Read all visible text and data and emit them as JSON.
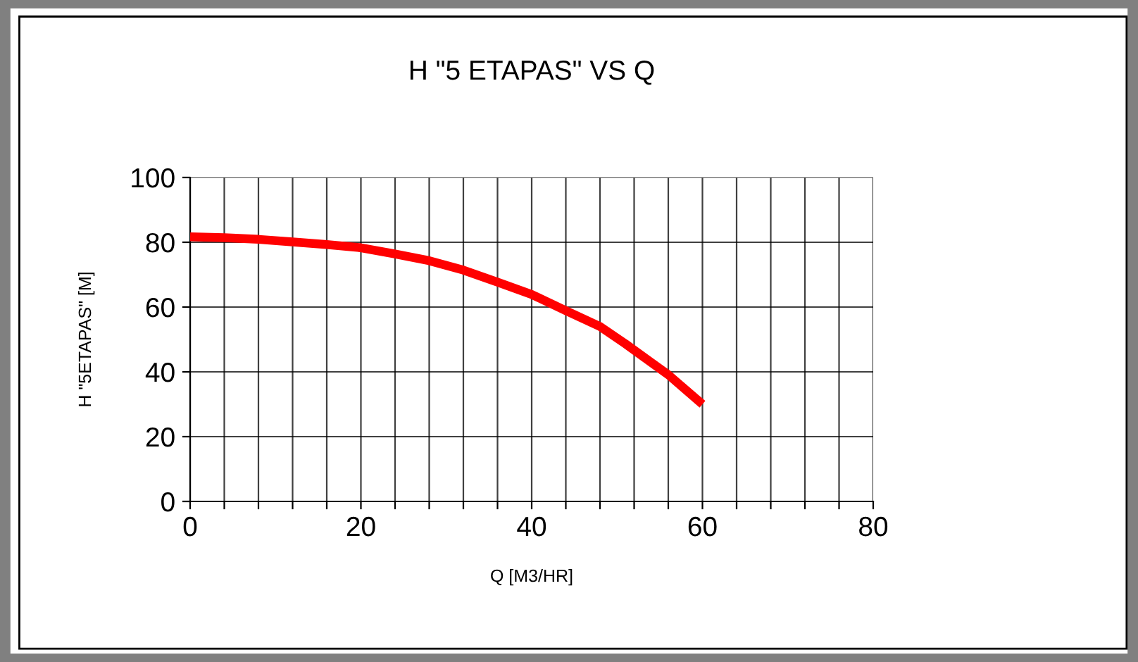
{
  "chart_data": {
    "type": "line",
    "title": "H \"5 ETAPAS\" VS Q",
    "xlabel": "Q [M3/HR]",
    "ylabel": "H \"5ETAPAS\" [M]",
    "series": [
      {
        "color": "#ff0000",
        "x": [
          0,
          4,
          8,
          12,
          16,
          20,
          24,
          28,
          32,
          36,
          40,
          44,
          48,
          51,
          56,
          60
        ],
        "values": [
          81.7,
          81.4,
          80.9,
          80.1,
          79.3,
          78.3,
          76.4,
          74.3,
          71.4,
          67.7,
          63.9,
          58.9,
          54,
          48.6,
          39.1,
          30
        ]
      }
    ],
    "xlim": [
      0,
      80
    ],
    "ylim": [
      0,
      100
    ],
    "xticks": [
      0,
      {
        "value": 4,
        "label": null
      },
      {
        "value": 8,
        "label": null
      },
      {
        "value": 12,
        "label": null
      },
      {
        "value": 16,
        "label": null
      },
      20,
      {
        "value": 24,
        "label": null
      },
      {
        "value": 28,
        "label": null
      },
      {
        "value": 32,
        "label": null
      },
      {
        "value": 36,
        "label": null
      },
      40,
      {
        "value": 44,
        "label": null
      },
      {
        "value": 48,
        "label": null
      },
      {
        "value": 52,
        "label": null
      },
      {
        "value": 56,
        "label": null
      },
      60,
      {
        "value": 64,
        "label": null
      },
      {
        "value": 68,
        "label": null
      },
      {
        "value": 72,
        "label": null
      },
      {
        "value": 76,
        "label": null
      },
      80
    ],
    "yticks": [
      0,
      20,
      40,
      60,
      80,
      100
    ],
    "grid": true,
    "marker": "none",
    "line_style": "solid"
  }
}
